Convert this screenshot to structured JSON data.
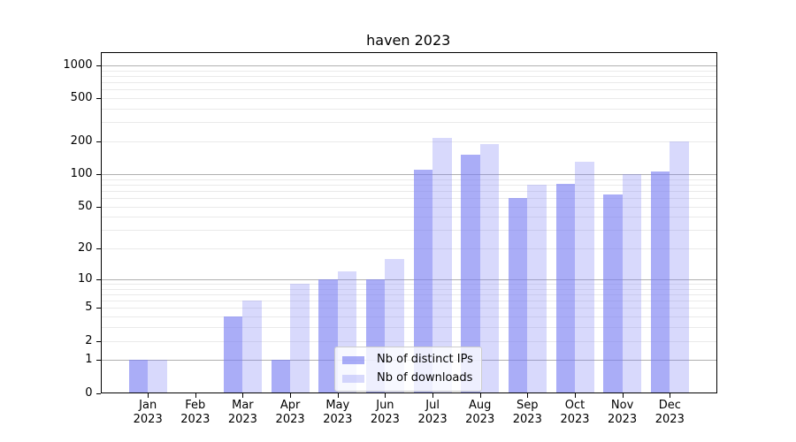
{
  "title": "haven 2023",
  "legend": {
    "items": [
      {
        "label": "Nb of distinct IPs",
        "color": "rgba(121,125,243,0.63)"
      },
      {
        "label": "Nb of downloads",
        "color": "rgba(121,125,243,0.29)"
      }
    ]
  },
  "colors": {
    "background": "#ffffff",
    "bar_distinct_ips": "rgba(121,125,243,0.63)",
    "bar_downloads": "rgba(121,125,243,0.29)",
    "grid_major": "#b0b0b0",
    "grid_minor": "#eaeaea",
    "axis": "#000000"
  },
  "chart_data": {
    "type": "bar",
    "title": "haven 2023",
    "scale": "log10(value+1)",
    "grid": "on",
    "legend_position": "lower-center-inside",
    "xlabel": "",
    "ylabel": "",
    "ylim": [
      0,
      1320
    ],
    "yticks": [
      0,
      1,
      2,
      5,
      10,
      20,
      50,
      100,
      200,
      500,
      1000
    ],
    "minor_gridlines": [
      2,
      3,
      4,
      5,
      6,
      7,
      8,
      9,
      20,
      30,
      40,
      50,
      60,
      70,
      80,
      90,
      200,
      300,
      400,
      500,
      600,
      700,
      800,
      900
    ],
    "major_gridlines": [
      1,
      10,
      100,
      1000
    ],
    "categories": [
      {
        "month": "Jan",
        "year": "2023"
      },
      {
        "month": "Feb",
        "year": "2023"
      },
      {
        "month": "Mar",
        "year": "2023"
      },
      {
        "month": "Apr",
        "year": "2023"
      },
      {
        "month": "May",
        "year": "2023"
      },
      {
        "month": "Jun",
        "year": "2023"
      },
      {
        "month": "Jul",
        "year": "2023"
      },
      {
        "month": "Aug",
        "year": "2023"
      },
      {
        "month": "Sep",
        "year": "2023"
      },
      {
        "month": "Oct",
        "year": "2023"
      },
      {
        "month": "Nov",
        "year": "2023"
      },
      {
        "month": "Dec",
        "year": "2023"
      }
    ],
    "series": [
      {
        "name": "Nb of distinct IPs",
        "values": [
          1,
          0,
          4,
          1,
          10,
          10,
          110,
          150,
          60,
          82,
          65,
          105
        ]
      },
      {
        "name": "Nb of downloads",
        "values": [
          1,
          0,
          6,
          9,
          12,
          16,
          215,
          190,
          80,
          130,
          100,
          200
        ]
      }
    ]
  }
}
